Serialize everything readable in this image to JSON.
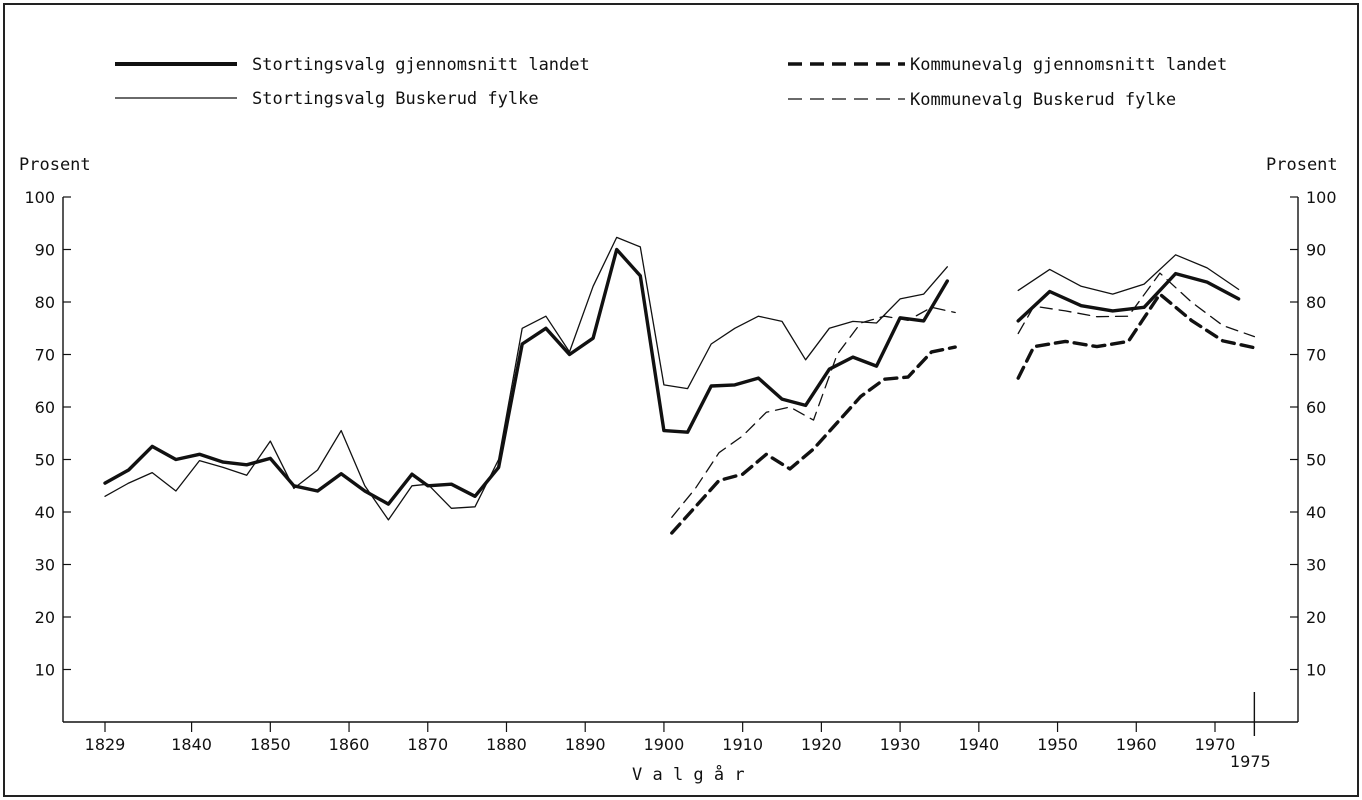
{
  "chart_data": {
    "type": "line",
    "xlabel": "V a l g å r",
    "ylabel_left": "Prosent",
    "ylabel_right": "Prosent",
    "xlim": [
      1824,
      1977
    ],
    "ylim": [
      0,
      100
    ],
    "x_ticks": [
      1829,
      1840,
      1850,
      1860,
      1870,
      1880,
      1890,
      1900,
      1910,
      1920,
      1930,
      1940,
      1950,
      1960,
      1970
    ],
    "x_tick_labels": [
      "1829",
      "1840",
      "1850",
      "1860",
      "1870",
      "1880",
      "1890",
      "1900",
      "1910",
      "1920",
      "1930",
      "1940",
      "1950",
      "1960",
      "1970"
    ],
    "x_extra_tick": {
      "value": 1975,
      "label": "1975"
    },
    "y_ticks": [
      10,
      20,
      30,
      40,
      50,
      60,
      70,
      80,
      90,
      100
    ],
    "y_tick_labels": [
      "10",
      "20",
      "30",
      "40",
      "50",
      "60",
      "70",
      "80",
      "90",
      "100"
    ],
    "legend_position": "top",
    "series": [
      {
        "name": "Stortingsvalg gjennomsnitt landet",
        "style": "solid-thick",
        "segments": [
          [
            [
              1829,
              45.5
            ],
            [
              1832,
              48
            ],
            [
              1835,
              52.5
            ],
            [
              1838,
              50
            ],
            [
              1841,
              51
            ],
            [
              1844,
              49.5
            ],
            [
              1847,
              49
            ],
            [
              1850,
              50.2
            ],
            [
              1853,
              45
            ],
            [
              1856,
              44
            ],
            [
              1859,
              47.3
            ],
            [
              1862,
              44
            ],
            [
              1865,
              41.5
            ],
            [
              1868,
              47.2
            ],
            [
              1870,
              45
            ],
            [
              1873,
              45.3
            ],
            [
              1876,
              43
            ],
            [
              1879,
              48.5
            ],
            [
              1882,
              72
            ],
            [
              1885,
              75
            ],
            [
              1888,
              70
            ],
            [
              1891,
              73.1
            ],
            [
              1894,
              90
            ],
            [
              1897,
              85
            ],
            [
              1900,
              55.5
            ],
            [
              1903,
              55.2
            ],
            [
              1906,
              64
            ],
            [
              1909,
              64.2
            ],
            [
              1912,
              65.5
            ],
            [
              1915,
              61.5
            ],
            [
              1918,
              60.3
            ],
            [
              1921,
              67.2
            ],
            [
              1924,
              69.5
            ],
            [
              1927,
              67.8
            ],
            [
              1930,
              77
            ],
            [
              1933,
              76.4
            ],
            [
              1936,
              84
            ]
          ],
          [
            [
              1945,
              76.4
            ],
            [
              1949,
              82
            ],
            [
              1953,
              79.3
            ],
            [
              1957,
              78.3
            ],
            [
              1961,
              79
            ],
            [
              1965,
              85.4
            ],
            [
              1969,
              83.8
            ],
            [
              1973,
              80.6
            ]
          ]
        ]
      },
      {
        "name": "Stortingsvalg Buskerud fylke",
        "style": "solid-thin",
        "segments": [
          [
            [
              1829,
              43
            ],
            [
              1832,
              45.5
            ],
            [
              1835,
              47.5
            ],
            [
              1838,
              44
            ],
            [
              1841,
              49.8
            ],
            [
              1844,
              48.5
            ],
            [
              1847,
              47
            ],
            [
              1850,
              53.5
            ],
            [
              1853,
              44.5
            ],
            [
              1856,
              48
            ],
            [
              1859,
              55.5
            ],
            [
              1862,
              45
            ],
            [
              1865,
              38.5
            ],
            [
              1868,
              45
            ],
            [
              1870,
              45.3
            ],
            [
              1873,
              40.7
            ],
            [
              1876,
              41
            ],
            [
              1879,
              50
            ],
            [
              1882,
              75
            ],
            [
              1885,
              77.3
            ],
            [
              1888,
              70.5
            ],
            [
              1891,
              83
            ],
            [
              1894,
              92.3
            ],
            [
              1897,
              90.5
            ],
            [
              1900,
              64.2
            ],
            [
              1903,
              63.5
            ],
            [
              1906,
              72
            ],
            [
              1909,
              75
            ],
            [
              1912,
              77.3
            ],
            [
              1915,
              76.3
            ],
            [
              1918,
              69
            ],
            [
              1921,
              75
            ],
            [
              1924,
              76.3
            ],
            [
              1927,
              76
            ],
            [
              1930,
              80.6
            ],
            [
              1933,
              81.5
            ],
            [
              1936,
              86.7
            ]
          ],
          [
            [
              1945,
              82.2
            ],
            [
              1949,
              86.2
            ],
            [
              1953,
              83
            ],
            [
              1957,
              81.5
            ],
            [
              1961,
              83.4
            ],
            [
              1965,
              89
            ],
            [
              1969,
              86.5
            ],
            [
              1973,
              82.4
            ]
          ]
        ]
      },
      {
        "name": "Kommunevalg gjennomsnitt landet",
        "style": "dashed-thick",
        "segments": [
          [
            [
              1901,
              36
            ],
            [
              1904,
              41
            ],
            [
              1907,
              46
            ],
            [
              1910,
              47.2
            ],
            [
              1913,
              51
            ],
            [
              1916,
              48.2
            ],
            [
              1919,
              52
            ],
            [
              1922,
              57
            ],
            [
              1925,
              62
            ],
            [
              1928,
              65.3
            ],
            [
              1931,
              65.7
            ],
            [
              1934,
              70.5
            ],
            [
              1937,
              71.4
            ]
          ],
          [
            [
              1945,
              65.5
            ],
            [
              1947,
              71.5
            ],
            [
              1951,
              72.5
            ],
            [
              1955,
              71.5
            ],
            [
              1959,
              72.5
            ],
            [
              1963,
              81.5
            ],
            [
              1967,
              76.5
            ],
            [
              1971,
              72.6
            ],
            [
              1975,
              71.3
            ]
          ]
        ]
      },
      {
        "name": "Kommunevalg Buskerud fylke",
        "style": "dashed-thin",
        "segments": [
          [
            [
              1901,
              39
            ],
            [
              1904,
              44.5
            ],
            [
              1907,
              51.3
            ],
            [
              1910,
              54.5
            ],
            [
              1913,
              59
            ],
            [
              1916,
              60
            ],
            [
              1919,
              57.5
            ],
            [
              1922,
              70
            ],
            [
              1925,
              76
            ],
            [
              1928,
              77.3
            ],
            [
              1931,
              76.5
            ],
            [
              1934,
              79
            ],
            [
              1937,
              78
            ]
          ],
          [
            [
              1945,
              74
            ],
            [
              1947,
              79.2
            ],
            [
              1951,
              78.3
            ],
            [
              1955,
              77.2
            ],
            [
              1959,
              77.3
            ],
            [
              1963,
              85.5
            ],
            [
              1967,
              80
            ],
            [
              1971,
              75.5
            ],
            [
              1975,
              73.4
            ]
          ]
        ]
      }
    ]
  }
}
